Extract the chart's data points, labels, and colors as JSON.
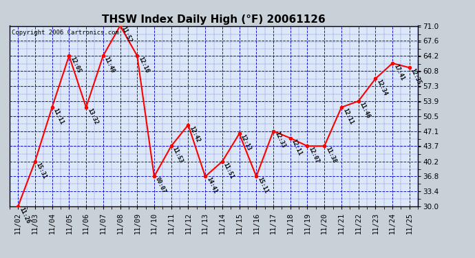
{
  "title": "THSW Index Daily High (°F) 20061126",
  "copyright": "Copyright 2006 Cartronics.com",
  "dates": [
    "11/02",
    "11/03",
    "11/04",
    "11/05",
    "11/06",
    "11/07",
    "11/08",
    "11/09",
    "11/10",
    "11/11",
    "11/12",
    "11/13",
    "11/14",
    "11/15",
    "11/16",
    "11/17",
    "11/18",
    "11/19",
    "11/20",
    "11/21",
    "11/22",
    "11/23",
    "11/24",
    "11/25"
  ],
  "values": [
    30.0,
    40.2,
    52.5,
    64.2,
    52.5,
    64.2,
    71.0,
    64.2,
    36.8,
    43.7,
    48.5,
    36.8,
    40.2,
    46.5,
    36.8,
    47.1,
    45.5,
    43.7,
    43.7,
    52.5,
    53.9,
    59.0,
    62.5,
    61.5
  ],
  "labels": [
    "11:26",
    "15:31",
    "11:11",
    "12:05",
    "13:32",
    "11:40",
    "11:52",
    "12:16",
    "00:07",
    "11:53",
    "12:42",
    "14:41",
    "11:51",
    "12:13",
    "15:11",
    "12:33",
    "12:11",
    "12:07",
    "11:38",
    "12:11",
    "11:46",
    "12:34",
    "17:41",
    "12:35"
  ],
  "ylim": [
    30.0,
    71.0
  ],
  "yticks": [
    30.0,
    33.4,
    36.8,
    40.2,
    43.7,
    47.1,
    50.5,
    53.9,
    57.3,
    60.8,
    64.2,
    67.6,
    71.0
  ],
  "line_color": "red",
  "marker_color": "red",
  "bg_color": "#c8d0d8",
  "plot_bg": "#dce8f8",
  "grid_color": "#0000cc",
  "title_fontsize": 11,
  "label_fontsize": 6,
  "copyright_fontsize": 6.5,
  "tick_fontsize": 7.5
}
